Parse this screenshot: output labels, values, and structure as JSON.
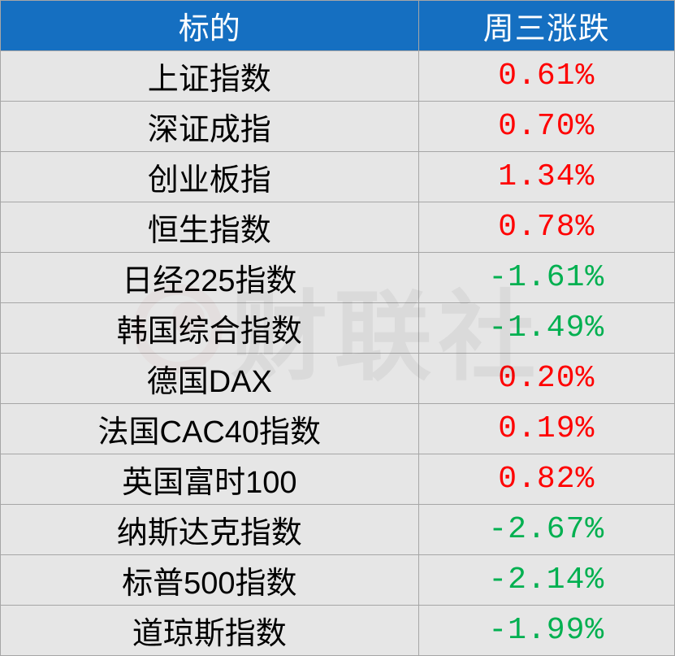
{
  "table": {
    "header_bg": "#156fc1",
    "header_text_color": "#ffffff",
    "body_bg": "#e6e6e6",
    "border_color": "#a6a6a6",
    "positive_color": "#ff0000",
    "negative_color": "#00b050",
    "name_text_color": "#000000",
    "col1_header": "标的",
    "col2_header": "周三涨跌",
    "rows": [
      {
        "name": "上证指数",
        "value": "0.61%",
        "positive": true
      },
      {
        "name": "深证成指",
        "value": "0.70%",
        "positive": true
      },
      {
        "name": "创业板指",
        "value": "1.34%",
        "positive": true
      },
      {
        "name": "恒生指数",
        "value": "0.78%",
        "positive": true
      },
      {
        "name": "日经225指数",
        "value": "-1.61%",
        "positive": false
      },
      {
        "name": "韩国综合指数",
        "value": "-1.49%",
        "positive": false
      },
      {
        "name": "德国DAX",
        "value": "0.20%",
        "positive": true
      },
      {
        "name": "法国CAC40指数",
        "value": "0.19%",
        "positive": true
      },
      {
        "name": "英国富时100",
        "value": "0.82%",
        "positive": true
      },
      {
        "name": "纳斯达克指数",
        "value": "-2.67%",
        "positive": false
      },
      {
        "name": "标普500指数",
        "value": "-2.14%",
        "positive": false
      },
      {
        "name": "道琼斯指数",
        "value": "-1.99%",
        "positive": false
      }
    ]
  },
  "watermark": {
    "text": "财联社",
    "text_color": "#333333",
    "circle_color": "#8b0000",
    "opacity": 0.06
  }
}
